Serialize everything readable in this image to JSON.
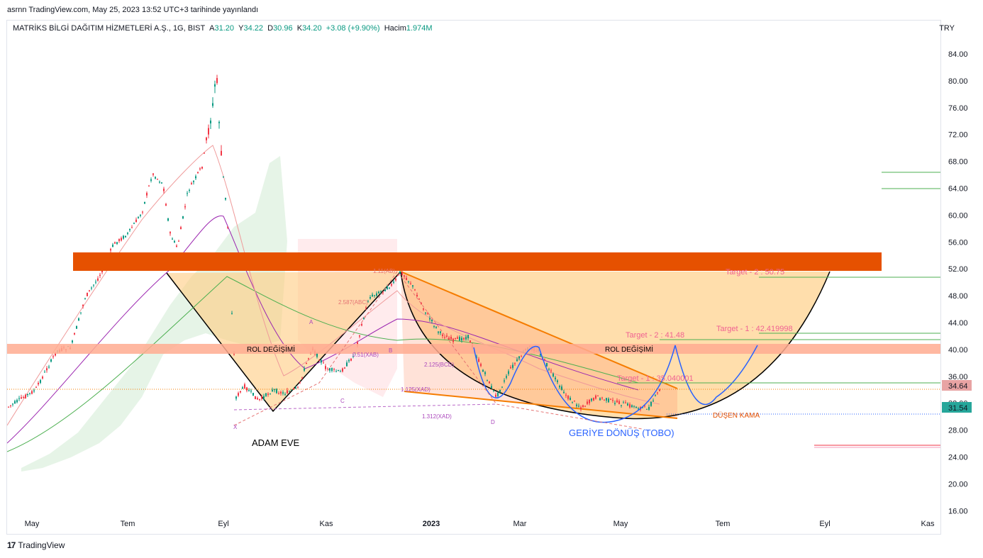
{
  "header": {
    "published": "asrnn TradingView.com, May 25, 2023 13:52 UTC+3 tarihinde yayınlandı",
    "symbol": "MATRİKS BİLGİ DAĞITIM HİZMETLERİ A.Ş., 1G, BIST",
    "o_label": "A",
    "o_value": "31.20",
    "h_label": "Y",
    "h_value": "34.22",
    "l_label": "D",
    "l_value": "30.96",
    "c_label": "K",
    "c_value": "34.20",
    "change": "+3.08 (+9.90%)",
    "vol_label": "Hacim",
    "vol_value": "1.974M",
    "currency": "TRY"
  },
  "footer": {
    "brand": "TradingView"
  },
  "colors": {
    "up": "#089981",
    "down": "#f23645",
    "orange": "#e65100",
    "wedge": "#ff6d00",
    "cup": "#ffcc80",
    "blue": "#2962ff"
  },
  "chart_data": {
    "type": "candlestick",
    "y_ticks": [
      "84.00",
      "80.00",
      "76.00",
      "72.00",
      "68.00",
      "64.00",
      "60.00",
      "56.00",
      "52.00",
      "48.00",
      "44.00",
      "40.00",
      "36.00",
      "32.00",
      "28.00",
      "24.00",
      "20.00",
      "16.00"
    ],
    "x_ticks": [
      {
        "label": "May"
      },
      {
        "label": "Tem"
      },
      {
        "label": "Eyl"
      },
      {
        "label": "Kas"
      },
      {
        "label": "2023",
        "bold": true
      },
      {
        "label": "Mar"
      },
      {
        "label": "May"
      },
      {
        "label": "Tem"
      },
      {
        "label": "Eyl"
      },
      {
        "label": "Kas"
      }
    ],
    "price_tags": [
      {
        "label": "34.64",
        "color": "#e8a3a3"
      },
      {
        "label": "31.54",
        "color": "#26a69a"
      }
    ],
    "annotations": {
      "rol1": "ROL DEĞİŞİMİ",
      "rol2": "ROL DEĞİŞİMİ",
      "adam": "ADAM EVE",
      "tobo": "GERİYE DÖNÜŞ (TOBO)",
      "kama": "DÜŞEN KAMA",
      "target2_top": "Target - 2 : 50.75",
      "target1": "Target - 1 : 42.419998",
      "target2": "Target - 2 : 41.48",
      "target1b": "Target - 1 : 35.040001",
      "hm": {
        "xab": "0.51(XAB)",
        "xad1": "1.125(XAD)",
        "xad2": "1.312(XAD)",
        "abc": "2.587(ABC)",
        "bcd": "2.125(BCD)",
        "rat": "1.11(AB)",
        "x": "X",
        "a": "A",
        "b": "B",
        "d": "D",
        "c": "C"
      }
    }
  }
}
